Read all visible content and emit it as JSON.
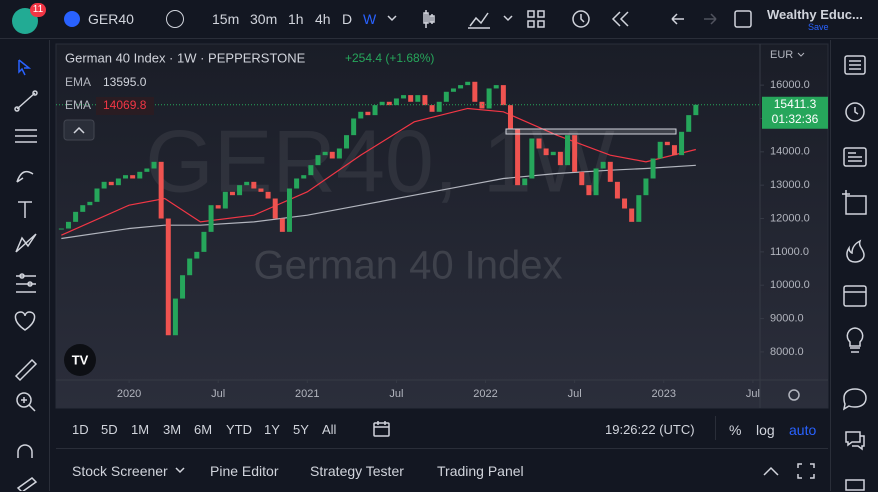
{
  "toolbar": {
    "badge": "11",
    "symbol": "GER40",
    "intervals": [
      "15m",
      "30m",
      "1h",
      "4h",
      "D",
      "W"
    ],
    "layout_name": "Wealthy Educ...",
    "save": "Save"
  },
  "legend": {
    "title": "German 40 Index · 1W · PEPPERSTONE",
    "change": "+254.4 (+1.68%)"
  },
  "chart_data": {
    "type": "candlestick",
    "currency": "EUR",
    "watermark": "GER40, 1W",
    "watermark_subtitle": "German 40 Index",
    "countdown": "01:32:36",
    "up_color": "#26a65b",
    "down_color": "#ef5350",
    "x": [
      2019.62,
      2019.66,
      2019.7,
      2019.74,
      2019.78,
      2019.82,
      2019.86,
      2019.9,
      2019.94,
      2019.98,
      2020.02,
      2020.06,
      2020.1,
      2020.14,
      2020.18,
      2020.22,
      2020.26,
      2020.3,
      2020.34,
      2020.38,
      2020.42,
      2020.46,
      2020.5,
      2020.54,
      2020.58,
      2020.62,
      2020.66,
      2020.7,
      2020.74,
      2020.78,
      2020.82,
      2020.86,
      2020.9,
      2020.94,
      2020.98,
      2021.02,
      2021.06,
      2021.1,
      2021.14,
      2021.18,
      2021.22,
      2021.26,
      2021.3,
      2021.34,
      2021.38,
      2021.42,
      2021.46,
      2021.5,
      2021.54,
      2021.58,
      2021.62,
      2021.66,
      2021.7,
      2021.74,
      2021.78,
      2021.82,
      2021.86,
      2021.9,
      2021.94,
      2021.98,
      2022.02,
      2022.06,
      2022.1,
      2022.14,
      2022.18,
      2022.22,
      2022.26,
      2022.3,
      2022.34,
      2022.38,
      2022.42,
      2022.46,
      2022.5,
      2022.54,
      2022.58,
      2022.62,
      2022.66,
      2022.7,
      2022.74,
      2022.78,
      2022.82,
      2022.86,
      2022.9,
      2022.94,
      2022.98,
      2023.02,
      2023.06,
      2023.1,
      2023.14,
      2023.18
    ],
    "values": [
      11700,
      11900,
      12200,
      12400,
      12500,
      12900,
      13100,
      13000,
      13200,
      13300,
      13200,
      13400,
      13500,
      13700,
      12000,
      8500,
      9600,
      10300,
      10800,
      11000,
      11600,
      12400,
      12300,
      12800,
      12700,
      13000,
      13100,
      12900,
      12800,
      12600,
      12000,
      11600,
      12900,
      13200,
      13300,
      13600,
      13900,
      14000,
      13800,
      14100,
      14500,
      15000,
      15200,
      15100,
      15400,
      15500,
      15400,
      15600,
      15700,
      15500,
      15700,
      15400,
      15200,
      15500,
      15800,
      15900,
      16000,
      16100,
      15500,
      15300,
      15900,
      16000,
      15400,
      14700,
      13000,
      13200,
      14400,
      14100,
      13900,
      14000,
      13600,
      14500,
      13400,
      13000,
      12700,
      13500,
      13700,
      13100,
      12600,
      12300,
      11900,
      12700,
      13200,
      13800,
      14300,
      14200,
      13900,
      14600,
      15100,
      15411.3
    ],
    "series": [
      {
        "name": "EMA",
        "color": "#b2b5be",
        "value_label": "13595.0",
        "x": [
          2019.62,
          2020.0,
          2020.2,
          2020.4,
          2020.7,
          2021.0,
          2021.3,
          2021.6,
          2021.9,
          2022.1,
          2022.4,
          2022.7,
          2022.9,
          2023.18
        ],
        "values": [
          11400,
          11700,
          11800,
          11800,
          11900,
          12100,
          12400,
          12700,
          13000,
          13200,
          13350,
          13450,
          13500,
          13595
        ]
      },
      {
        "name": "EMA",
        "color": "#f23645",
        "value_label": "14069.8",
        "x": [
          2019.62,
          2020.0,
          2020.2,
          2020.4,
          2020.7,
          2021.0,
          2021.3,
          2021.6,
          2021.9,
          2022.1,
          2022.4,
          2022.7,
          2022.9,
          2023.18
        ],
        "values": [
          11500,
          12400,
          12600,
          11900,
          12100,
          12800,
          13900,
          14900,
          15300,
          15200,
          14500,
          13900,
          13700,
          14069.8
        ]
      }
    ],
    "xlim": [
      2019.59,
      2023.54
    ],
    "xticks": [
      {
        "value": 2020,
        "label": "2020"
      },
      {
        "value": 2020.5,
        "label": "Jul"
      },
      {
        "value": 2021,
        "label": "2021"
      },
      {
        "value": 2021.5,
        "label": "Jul"
      },
      {
        "value": 2022,
        "label": "2022"
      },
      {
        "value": 2022.5,
        "label": "Jul"
      },
      {
        "value": 2023,
        "label": "2023"
      },
      {
        "value": 2023.5,
        "label": "Jul"
      }
    ],
    "ylim": [
      7158,
      17233
    ],
    "yticks": [
      {
        "value": 8000,
        "label": "8000.0"
      },
      {
        "value": 9000,
        "label": "9000.0"
      },
      {
        "value": 10000,
        "label": "10000.0"
      },
      {
        "value": 11000,
        "label": "11000.0"
      },
      {
        "value": 12000,
        "label": "12000.0"
      },
      {
        "value": 13000,
        "label": "13000.0"
      },
      {
        "value": 14000,
        "label": "14000.0"
      },
      {
        "value": 15000,
        "label": "15000.0"
      },
      {
        "value": 16000,
        "label": "16000.0"
      }
    ]
  },
  "timeframes": [
    "1D",
    "5D",
    "1M",
    "3M",
    "6M",
    "YTD",
    "1Y",
    "5Y",
    "All"
  ],
  "clock": "19:26:22 (UTC)",
  "scale_options": [
    "%",
    "log",
    "auto"
  ],
  "bottom_tabs": [
    "Stock Screener",
    "Pine Editor",
    "Strategy Tester",
    "Trading Panel"
  ]
}
